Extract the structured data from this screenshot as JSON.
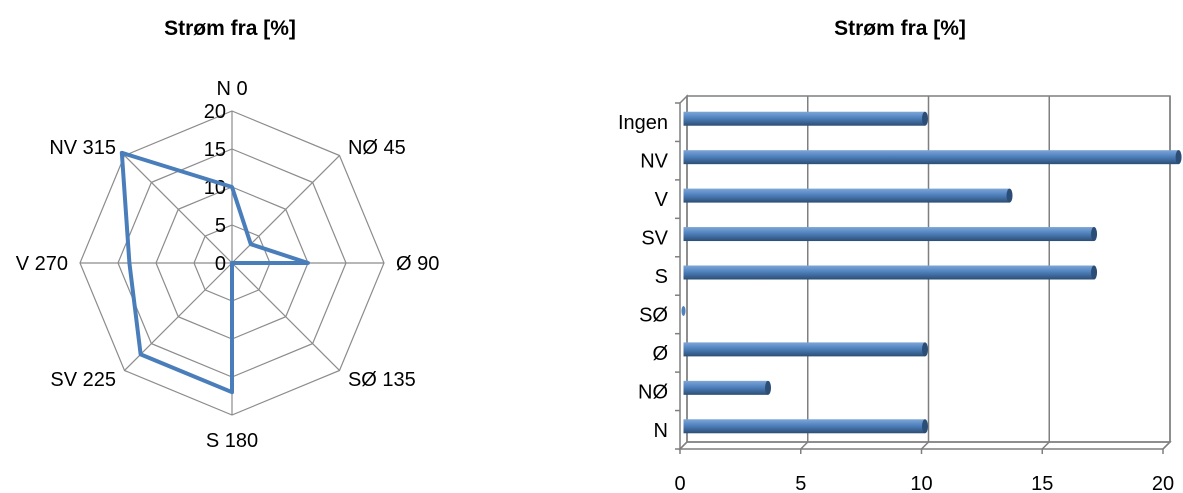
{
  "chart_data": [
    {
      "type": "radar",
      "title": "Strøm fra [%]",
      "categories": [
        "N 0",
        "NØ 45",
        "Ø 90",
        "SØ 135",
        "S 180",
        "SV 225",
        "V 270",
        "NV 315"
      ],
      "values": [
        10,
        3.5,
        10,
        0,
        17,
        17,
        13.5,
        20.5
      ],
      "rlim": [
        0,
        20
      ],
      "rticks": [
        "0",
        "5",
        "10",
        "15",
        "20"
      ],
      "series_color": "#4a7ebb",
      "grid": true
    },
    {
      "type": "bar",
      "orientation": "horizontal",
      "title": "Strøm fra [%]",
      "categories": [
        "N",
        "NØ",
        "Ø",
        "SØ",
        "S",
        "SV",
        "V",
        "NV",
        "Ingen"
      ],
      "values": [
        10,
        3.5,
        10,
        0,
        17,
        17,
        13.5,
        20.5,
        10
      ],
      "xlim": [
        0,
        20
      ],
      "xticks": [
        "0",
        "5",
        "10",
        "15",
        "20"
      ],
      "bar_color": "#4f81bd",
      "grid": true
    }
  ]
}
